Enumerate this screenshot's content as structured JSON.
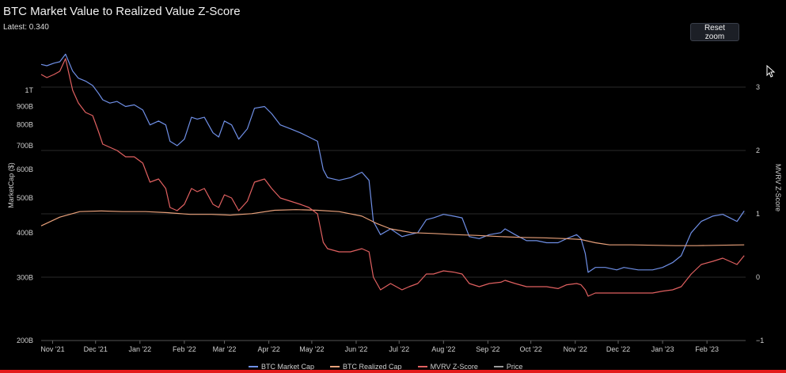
{
  "header": {
    "title": "BTC Market Value to Realized Value Z-Score",
    "latest": "Latest: 0.340"
  },
  "toolbar": {
    "reset_zoom_label": "Reset zoom"
  },
  "colors": {
    "market_cap": "#6f8fe6",
    "realized_cap": "#e8a07a",
    "zscore": "#e06060",
    "price": "#9a9a9a",
    "grid": "#2a2a2a",
    "progress": "#e31b1b"
  },
  "chart_data": {
    "type": "line",
    "title": "BTC Market Value to Realized Value Z-Score",
    "ylabel_left": "MarketCap ($)",
    "ylabel_right": "MVRV Z-Score",
    "x_tick_labels": [
      "Nov '21",
      "Dec '21",
      "Jan '22",
      "Feb '22",
      "Mar '22",
      "Apr '22",
      "May '22",
      "Jun '22",
      "Jul '22",
      "Aug '22",
      "Sep '22",
      "Oct '22",
      "Nov '22",
      "Dec '22",
      "Jan '23",
      "Feb '23"
    ],
    "left_axis_ticks": [
      "1T",
      "900B",
      "800B",
      "700B",
      "600B",
      "500B",
      "400B",
      "300B",
      "200B"
    ],
    "left_axis_values": [
      1000,
      900,
      800,
      700,
      600,
      500,
      400,
      300,
      200
    ],
    "left_axis_scale": "log",
    "left_axis_unit": "B",
    "right_axis_ticks": [
      "3",
      "2",
      "1",
      "0",
      "−1"
    ],
    "right_axis_values": [
      3,
      2,
      1,
      0,
      -1
    ],
    "ylim_left": [
      200,
      1250
    ],
    "ylim_right": [
      -1,
      3.5
    ],
    "xlim": [
      "2021-10-24",
      "2023-02-28"
    ],
    "grid": true,
    "legend_position": "bottom",
    "series": [
      {
        "name": "BTC Market Cap",
        "axis": "left",
        "x": [
          "2021-10-24",
          "2021-10-28",
          "2021-11-02",
          "2021-11-06",
          "2021-11-10",
          "2021-11-15",
          "2021-11-19",
          "2021-11-24",
          "2021-11-29",
          "2021-12-03",
          "2021-12-06",
          "2021-12-11",
          "2021-12-16",
          "2021-12-22",
          "2021-12-28",
          "2022-01-03",
          "2022-01-08",
          "2022-01-14",
          "2022-01-19",
          "2022-01-22",
          "2022-01-27",
          "2022-02-01",
          "2022-02-06",
          "2022-02-10",
          "2022-02-15",
          "2022-02-21",
          "2022-02-25",
          "2022-03-01",
          "2022-03-06",
          "2022-03-11",
          "2022-03-17",
          "2022-03-22",
          "2022-03-29",
          "2022-04-03",
          "2022-04-09",
          "2022-04-16",
          "2022-04-23",
          "2022-04-29",
          "2022-05-05",
          "2022-05-09",
          "2022-05-12",
          "2022-05-20",
          "2022-05-28",
          "2022-06-05",
          "2022-06-10",
          "2022-06-13",
          "2022-06-18",
          "2022-06-25",
          "2022-07-03",
          "2022-07-08",
          "2022-07-14",
          "2022-07-20",
          "2022-07-25",
          "2022-08-01",
          "2022-08-08",
          "2022-08-14",
          "2022-08-19",
          "2022-08-26",
          "2022-09-02",
          "2022-09-10",
          "2022-09-13",
          "2022-09-20",
          "2022-09-28",
          "2022-10-05",
          "2022-10-12",
          "2022-10-20",
          "2022-10-26",
          "2022-11-02",
          "2022-11-05",
          "2022-11-08",
          "2022-11-10",
          "2022-11-15",
          "2022-11-22",
          "2022-11-30",
          "2022-12-05",
          "2022-12-15",
          "2022-12-25",
          "2023-01-01",
          "2023-01-08",
          "2023-01-14",
          "2023-01-21",
          "2023-01-28",
          "2023-02-05",
          "2023-02-12",
          "2023-02-17",
          "2023-02-22",
          "2023-02-27"
        ],
        "values": [
          1180,
          1170,
          1190,
          1200,
          1260,
          1130,
          1080,
          1060,
          1030,
          980,
          940,
          920,
          930,
          900,
          910,
          880,
          800,
          820,
          800,
          720,
          700,
          730,
          840,
          830,
          840,
          760,
          740,
          820,
          800,
          730,
          780,
          890,
          900,
          860,
          800,
          780,
          760,
          740,
          720,
          600,
          570,
          560,
          570,
          590,
          560,
          430,
          395,
          410,
          390,
          395,
          400,
          435,
          440,
          450,
          445,
          440,
          390,
          385,
          395,
          400,
          410,
          395,
          380,
          380,
          375,
          375,
          385,
          395,
          385,
          350,
          310,
          320,
          320,
          315,
          320,
          315,
          315,
          320,
          330,
          345,
          400,
          430,
          445,
          450,
          440,
          430,
          460
        ]
      },
      {
        "name": "BTC Realized Cap",
        "axis": "left",
        "x": [
          "2021-10-24",
          "2021-11-06",
          "2021-11-20",
          "2021-12-05",
          "2021-12-20",
          "2022-01-05",
          "2022-01-20",
          "2022-02-05",
          "2022-02-20",
          "2022-03-05",
          "2022-03-20",
          "2022-04-05",
          "2022-04-20",
          "2022-05-05",
          "2022-05-20",
          "2022-06-05",
          "2022-06-15",
          "2022-06-25",
          "2022-07-10",
          "2022-07-25",
          "2022-08-10",
          "2022-08-25",
          "2022-09-10",
          "2022-09-25",
          "2022-10-10",
          "2022-10-25",
          "2022-11-05",
          "2022-11-15",
          "2022-11-25",
          "2022-12-10",
          "2022-12-25",
          "2023-01-10",
          "2023-01-25",
          "2023-02-10",
          "2023-02-27"
        ],
        "values": [
          418,
          442,
          458,
          460,
          458,
          458,
          455,
          450,
          450,
          448,
          452,
          462,
          464,
          462,
          458,
          445,
          425,
          410,
          400,
          398,
          395,
          393,
          390,
          388,
          387,
          385,
          383,
          375,
          370,
          370,
          369,
          368,
          368,
          369,
          370
        ]
      },
      {
        "name": "MVRV Z-Score",
        "axis": "right",
        "x": [
          "2021-10-24",
          "2021-10-28",
          "2021-11-02",
          "2021-11-06",
          "2021-11-10",
          "2021-11-15",
          "2021-11-19",
          "2021-11-24",
          "2021-11-29",
          "2021-12-03",
          "2021-12-06",
          "2021-12-11",
          "2021-12-16",
          "2021-12-22",
          "2021-12-28",
          "2022-01-03",
          "2022-01-08",
          "2022-01-14",
          "2022-01-19",
          "2022-01-22",
          "2022-01-27",
          "2022-02-01",
          "2022-02-06",
          "2022-02-10",
          "2022-02-15",
          "2022-02-21",
          "2022-02-25",
          "2022-03-01",
          "2022-03-06",
          "2022-03-11",
          "2022-03-17",
          "2022-03-22",
          "2022-03-29",
          "2022-04-03",
          "2022-04-09",
          "2022-04-16",
          "2022-04-23",
          "2022-04-29",
          "2022-05-05",
          "2022-05-09",
          "2022-05-12",
          "2022-05-20",
          "2022-05-28",
          "2022-06-05",
          "2022-06-10",
          "2022-06-13",
          "2022-06-18",
          "2022-06-25",
          "2022-07-03",
          "2022-07-08",
          "2022-07-14",
          "2022-07-20",
          "2022-07-25",
          "2022-08-01",
          "2022-08-08",
          "2022-08-14",
          "2022-08-19",
          "2022-08-26",
          "2022-09-02",
          "2022-09-10",
          "2022-09-13",
          "2022-09-20",
          "2022-09-28",
          "2022-10-05",
          "2022-10-12",
          "2022-10-20",
          "2022-10-26",
          "2022-11-02",
          "2022-11-05",
          "2022-11-08",
          "2022-11-10",
          "2022-11-15",
          "2022-11-22",
          "2022-11-30",
          "2022-12-05",
          "2022-12-15",
          "2022-12-25",
          "2023-01-01",
          "2023-01-08",
          "2023-01-14",
          "2023-01-21",
          "2023-01-28",
          "2023-02-05",
          "2023-02-12",
          "2023-02-17",
          "2023-02-22",
          "2023-02-27"
        ],
        "values": [
          3.2,
          3.15,
          3.2,
          3.25,
          3.45,
          2.95,
          2.75,
          2.6,
          2.55,
          2.3,
          2.1,
          2.05,
          2.0,
          1.9,
          1.9,
          1.8,
          1.5,
          1.55,
          1.4,
          1.1,
          1.05,
          1.15,
          1.4,
          1.35,
          1.4,
          1.15,
          1.1,
          1.3,
          1.25,
          1.05,
          1.2,
          1.5,
          1.55,
          1.4,
          1.25,
          1.2,
          1.15,
          1.1,
          1.0,
          0.55,
          0.45,
          0.4,
          0.4,
          0.45,
          0.4,
          0.0,
          -0.2,
          -0.1,
          -0.2,
          -0.15,
          -0.1,
          0.05,
          0.05,
          0.1,
          0.08,
          0.05,
          -0.1,
          -0.15,
          -0.1,
          -0.08,
          -0.05,
          -0.1,
          -0.15,
          -0.15,
          -0.15,
          -0.18,
          -0.12,
          -0.1,
          -0.12,
          -0.2,
          -0.3,
          -0.25,
          -0.25,
          -0.25,
          -0.25,
          -0.25,
          -0.25,
          -0.22,
          -0.2,
          -0.15,
          0.05,
          0.2,
          0.25,
          0.3,
          0.25,
          0.2,
          0.34
        ]
      },
      {
        "name": "Price",
        "axis": "left",
        "x": [],
        "values": []
      }
    ]
  }
}
